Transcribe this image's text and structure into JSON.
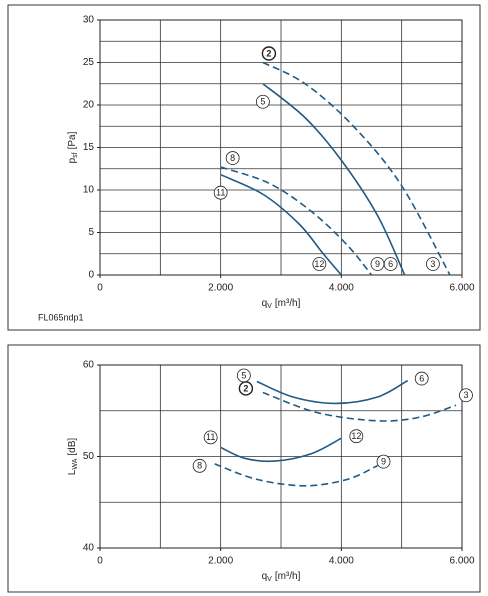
{
  "chart_data": [
    {
      "type": "line",
      "code": "FL065ndp1",
      "xlabel": {
        "main": "q",
        "sub": "V",
        "unit": "[m³/h]"
      },
      "ylabel": {
        "main": "p",
        "sub": "sf",
        "unit": "[Pa]"
      },
      "xlim": [
        0,
        6000
      ],
      "ylim": [
        0,
        30
      ],
      "xticks": [
        0,
        {
          "value": 2000,
          "label": "2.000"
        },
        {
          "value": 4000,
          "label": "4.000"
        },
        {
          "value": 6000,
          "label": "6.000"
        }
      ],
      "yticks": [
        0,
        5,
        10,
        15,
        20,
        25,
        30
      ],
      "xgrid": [
        1000,
        2000,
        3000,
        4000,
        5000
      ],
      "ygrid": [
        2.5,
        5,
        7.5,
        10,
        12.5,
        15,
        17.5,
        20,
        22.5,
        25,
        27.5
      ],
      "grid": true,
      "series": [
        {
          "label_start": "2",
          "label_end": "3",
          "bold_start": true,
          "dashed": true,
          "color": "#1f5b85",
          "x": [
            2700,
            3400,
            4200,
            5000,
            5800
          ],
          "values": [
            25,
            22.5,
            17.5,
            10.5,
            0
          ]
        },
        {
          "label_start": "5",
          "label_end": "6",
          "dashed": false,
          "color": "#1f5b85",
          "x": [
            2700,
            3400,
            4000,
            4600,
            5050
          ],
          "values": [
            22.5,
            18.5,
            13.5,
            7,
            0
          ]
        },
        {
          "label_start": "8",
          "label_end": "9",
          "dashed": true,
          "color": "#1f5b85",
          "x": [
            2000,
            2800,
            3500,
            4100,
            4500
          ],
          "values": [
            12.7,
            10.8,
            7.5,
            3.5,
            0
          ]
        },
        {
          "label_start": "11",
          "label_end": "12",
          "dashed": false,
          "color": "#1f5b85",
          "x": [
            2000,
            2700,
            3300,
            3700,
            4000
          ],
          "values": [
            11.8,
            9.5,
            6,
            2.5,
            0
          ]
        }
      ]
    },
    {
      "type": "line",
      "xlabel": {
        "main": "q",
        "sub": "V",
        "unit": "[m³/h]"
      },
      "ylabel": {
        "main": "L",
        "sub": "WA",
        "unit": "[dB]"
      },
      "xlim": [
        0,
        6000
      ],
      "ylim": [
        40,
        60
      ],
      "xticks": [
        0,
        {
          "value": 2000,
          "label": "2.000"
        },
        {
          "value": 4000,
          "label": "4.000"
        },
        {
          "value": 6000,
          "label": "6.000"
        }
      ],
      "yticks": [
        40,
        50,
        60
      ],
      "xgrid": [
        1000,
        2000,
        3000,
        4000,
        5000
      ],
      "ygrid": [
        45,
        50,
        55
      ],
      "grid": true,
      "series": [
        {
          "label_start": "5",
          "label_end": "6",
          "dashed": false,
          "color": "#1f5b85",
          "x": [
            2600,
            3200,
            3900,
            4600,
            5100
          ],
          "values": [
            58.2,
            56.5,
            55.8,
            56.5,
            58.3
          ]
        },
        {
          "label_start": "2",
          "label_end": "3",
          "bold_start": true,
          "dashed": true,
          "color": "#1f5b85",
          "x": [
            2700,
            3600,
            4600,
            5300,
            5900
          ],
          "values": [
            57,
            54.8,
            53.9,
            54.3,
            55.6
          ]
        },
        {
          "label_start": "11",
          "label_end": "12",
          "dashed": false,
          "color": "#1f5b85",
          "x": [
            2000,
            2400,
            2900,
            3500,
            4000
          ],
          "values": [
            51,
            49.8,
            49.5,
            50.3,
            52
          ]
        },
        {
          "label_start": "8",
          "label_end": "9",
          "dashed": true,
          "color": "#1f5b85",
          "x": [
            1900,
            2600,
            3400,
            4100,
            4600
          ],
          "values": [
            49.2,
            47.5,
            46.8,
            47.5,
            49
          ]
        }
      ]
    }
  ]
}
